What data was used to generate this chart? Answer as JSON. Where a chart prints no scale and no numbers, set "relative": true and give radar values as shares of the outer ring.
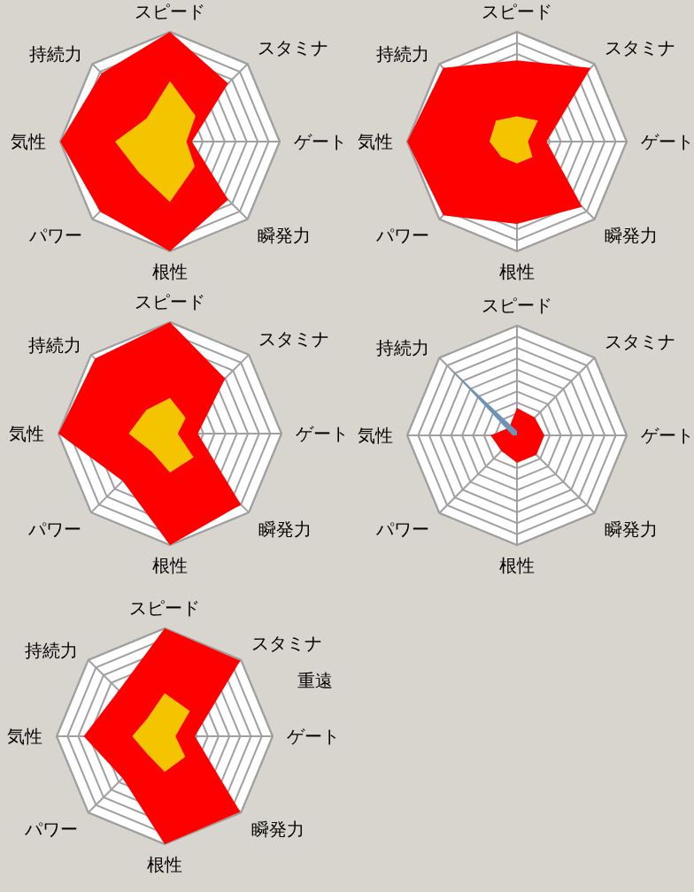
{
  "chart_data": [
    {
      "type": "radar",
      "categories": [
        "スピード",
        "スタミナ",
        "ゲート",
        "瞬発力",
        "根性",
        "パワー",
        "気性",
        "持続力"
      ],
      "relative": true,
      "grid": true,
      "series": [
        {
          "color": "#ff0000",
          "values": [
            1.0,
            0.75,
            0.2,
            0.75,
            1.0,
            0.9,
            1.0,
            0.88
          ]
        },
        {
          "color": "#f5c400",
          "values": [
            0.55,
            0.33,
            0.15,
            0.32,
            0.55,
            0.4,
            0.5,
            0.3
          ]
        }
      ]
    },
    {
      "type": "radar",
      "categories": [
        "スピード",
        "スタミナ",
        "ゲート",
        "瞬発力",
        "根性",
        "パワー",
        "気性",
        "持続力"
      ],
      "relative": true,
      "grid": true,
      "series": [
        {
          "color": "#ff0000",
          "values": [
            0.74,
            0.95,
            0.27,
            0.84,
            0.75,
            0.95,
            1.0,
            0.95
          ]
        },
        {
          "color": "#f5c400",
          "values": [
            0.23,
            0.27,
            0.1,
            0.2,
            0.2,
            0.2,
            0.25,
            0.27
          ]
        }
      ]
    },
    {
      "type": "radar",
      "categories": [
        "スピード",
        "スタミナ",
        "ゲート",
        "瞬発力",
        "根性",
        "パワー",
        "気性",
        "持続力"
      ],
      "relative": true,
      "grid": true,
      "series": [
        {
          "color": "#ff0000",
          "values": [
            1.0,
            0.7,
            0.25,
            0.9,
            1.0,
            0.6,
            1.0,
            0.95
          ]
        },
        {
          "color": "#f5c400",
          "values": [
            0.32,
            0.2,
            0.07,
            0.3,
            0.35,
            0.23,
            0.37,
            0.3
          ]
        }
      ]
    },
    {
      "type": "radar",
      "categories": [
        "スピード",
        "スタミナ",
        "ゲート",
        "瞬発力",
        "根性",
        "パワー",
        "気性",
        "持続力"
      ],
      "relative": true,
      "grid": true,
      "series": [
        {
          "color": "#ff0000",
          "values": [
            0.25,
            0.23,
            0.25,
            0.25,
            0.25,
            0.2,
            0.24,
            0.1
          ]
        },
        {
          "color": "#6f93b8",
          "values": [
            0.04,
            0,
            0,
            0,
            0,
            0,
            0.04,
            0.9
          ]
        }
      ]
    },
    {
      "type": "radar",
      "categories": [
        "スピード",
        "スタミナ",
        "ゲート",
        "瞬発力",
        "根性",
        "パワー",
        "気性",
        "持続力"
      ],
      "relative": true,
      "grid": true,
      "annotations": [
        "重遠"
      ],
      "series": [
        {
          "color": "#ff0000",
          "values": [
            1.0,
            0.99,
            0.28,
            0.99,
            1.0,
            0.55,
            0.75,
            0.6
          ]
        },
        {
          "color": "#f5c400",
          "values": [
            0.4,
            0.33,
            0.1,
            0.27,
            0.33,
            0.23,
            0.3,
            0.23
          ]
        }
      ]
    }
  ]
}
